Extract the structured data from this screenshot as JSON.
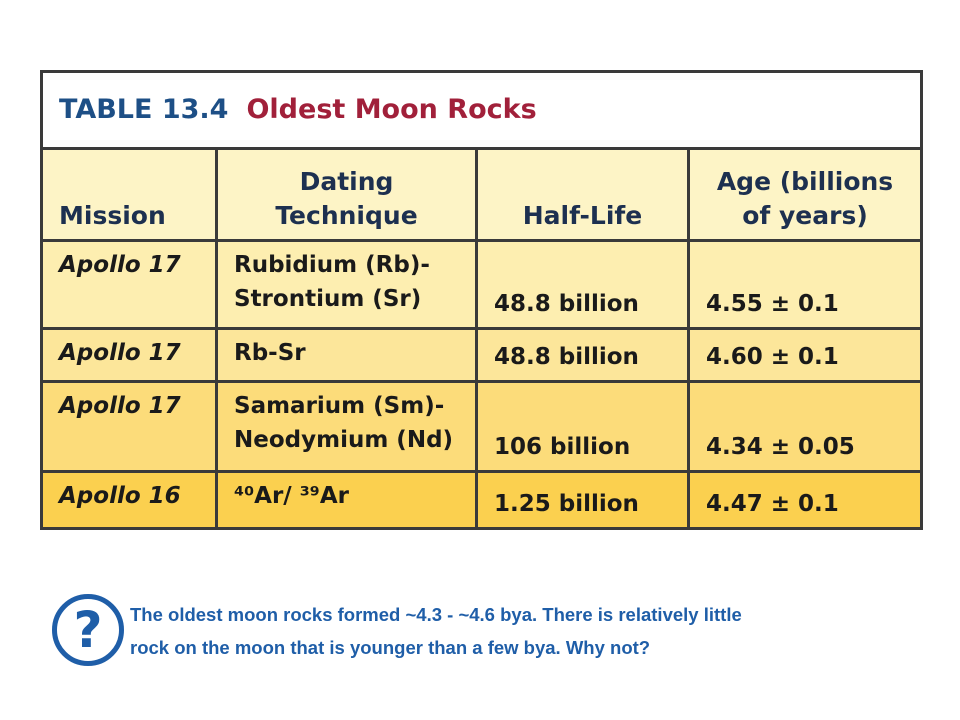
{
  "table": {
    "label": "TABLE 13.4",
    "title": "Oldest Moon Rocks",
    "header": {
      "mission": "Mission",
      "technique": [
        "Dating",
        "Technique"
      ],
      "half_life": "Half-Life",
      "age": [
        "Age (billions",
        "of years)"
      ]
    },
    "rows": [
      {
        "mission": "Apollo 17",
        "technique": [
          "Rubidium (Rb)-",
          "Strontium (Sr)"
        ],
        "half_life": "48.8 billion",
        "age": "4.55 ± 0.1"
      },
      {
        "mission": "Apollo 17",
        "technique": [
          "Rb-Sr"
        ],
        "half_life": "48.8 billion",
        "age": "4.60 ± 0.1"
      },
      {
        "mission": "Apollo 17",
        "technique": [
          "Samarium (Sm)-",
          "Neodymium (Nd)"
        ],
        "half_life": "106 billion",
        "age": "4.34 ± 0.05"
      },
      {
        "mission": "Apollo 16",
        "technique": [
          "⁴⁰Ar/ ³⁹Ar"
        ],
        "half_life": "1.25 billion",
        "age": "4.47 ± 0.1"
      }
    ]
  },
  "note": {
    "icon": "?",
    "lines": [
      "The oldest moon rocks formed ~4.3 - ~4.6 bya.  There is relatively little",
      "rock on the moon that is younger than a few bya.  Why not?"
    ]
  }
}
